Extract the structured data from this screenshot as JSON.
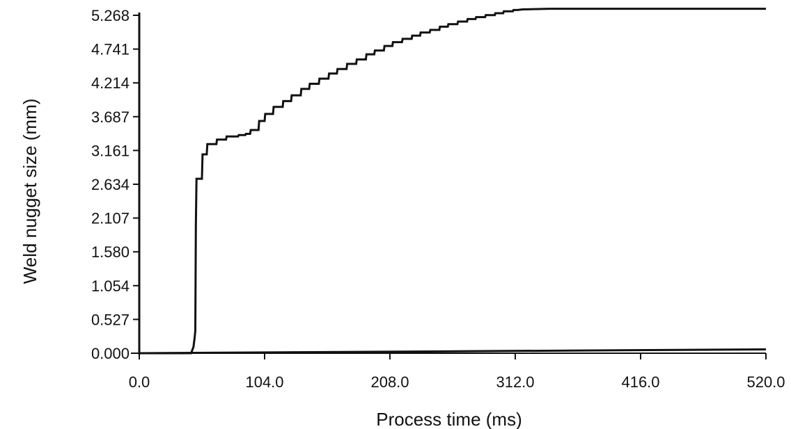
{
  "chart_data": {
    "type": "line",
    "title": "",
    "xlabel": "Process time (ms)",
    "ylabel": "Weld nugget size (mm)",
    "xlim": [
      0,
      520
    ],
    "ylim": [
      0,
      5.268
    ],
    "x_ticks": [
      "0.0",
      "104.0",
      "208.0",
      "312.0",
      "416.0",
      "520.0"
    ],
    "y_ticks": [
      "0.000",
      "0.527",
      "1.054",
      "1.580",
      "2.107",
      "2.634",
      "3.161",
      "3.687",
      "4.214",
      "4.741",
      "5.268"
    ],
    "grid": false,
    "legend": "none",
    "line_color": "#111111",
    "series": [
      {
        "name": "",
        "x": [
          0,
          43,
          44,
          45,
          46,
          46.5,
          47,
          47.5,
          52,
          52.5,
          56,
          56.5,
          64,
          64.5,
          72,
          72.5,
          82,
          82.5,
          88,
          88.5,
          92,
          92.5,
          99,
          99.5,
          104,
          104.5,
          111,
          111.5,
          119,
          119.5,
          126,
          126.5,
          134,
          134.5,
          141,
          141.5,
          149,
          149.5,
          157,
          157.5,
          164,
          164.5,
          172,
          172.5,
          180,
          180.5,
          188,
          188.5,
          195,
          195.5,
          203,
          203.5,
          210,
          210.5,
          218,
          218.5,
          226,
          226.5,
          233,
          233.5,
          241,
          241.5,
          249,
          249.5,
          256,
          256.5,
          264,
          264.5,
          272,
          272.5,
          279,
          279.5,
          287,
          287.5,
          295,
          295.5,
          302,
          302.5,
          310,
          310.5,
          314,
          318,
          340,
          380,
          420,
          460,
          500,
          520
        ],
        "y": [
          0,
          0,
          0.05,
          0.1,
          0.25,
          0.35,
          2.0,
          2.72,
          2.72,
          3.1,
          3.1,
          3.26,
          3.26,
          3.33,
          3.33,
          3.38,
          3.38,
          3.4,
          3.4,
          3.42,
          3.42,
          3.48,
          3.48,
          3.62,
          3.62,
          3.73,
          3.73,
          3.84,
          3.84,
          3.93,
          3.93,
          4.02,
          4.02,
          4.12,
          4.12,
          4.2,
          4.2,
          4.28,
          4.28,
          4.36,
          4.36,
          4.43,
          4.43,
          4.51,
          4.51,
          4.58,
          4.58,
          4.66,
          4.66,
          4.72,
          4.72,
          4.79,
          4.79,
          4.85,
          4.85,
          4.9,
          4.9,
          4.95,
          4.95,
          5.0,
          5.0,
          5.04,
          5.04,
          5.09,
          5.09,
          5.13,
          5.13,
          5.17,
          5.17,
          5.21,
          5.21,
          5.24,
          5.24,
          5.27,
          5.27,
          5.3,
          5.3,
          5.33,
          5.33,
          5.35,
          5.35,
          5.36,
          5.37,
          5.37,
          5.37,
          5.37,
          5.37,
          5.37
        ],
        "baseline_line": {
          "x": [
            0,
            520
          ],
          "y": [
            0,
            0.06
          ]
        }
      }
    ]
  }
}
